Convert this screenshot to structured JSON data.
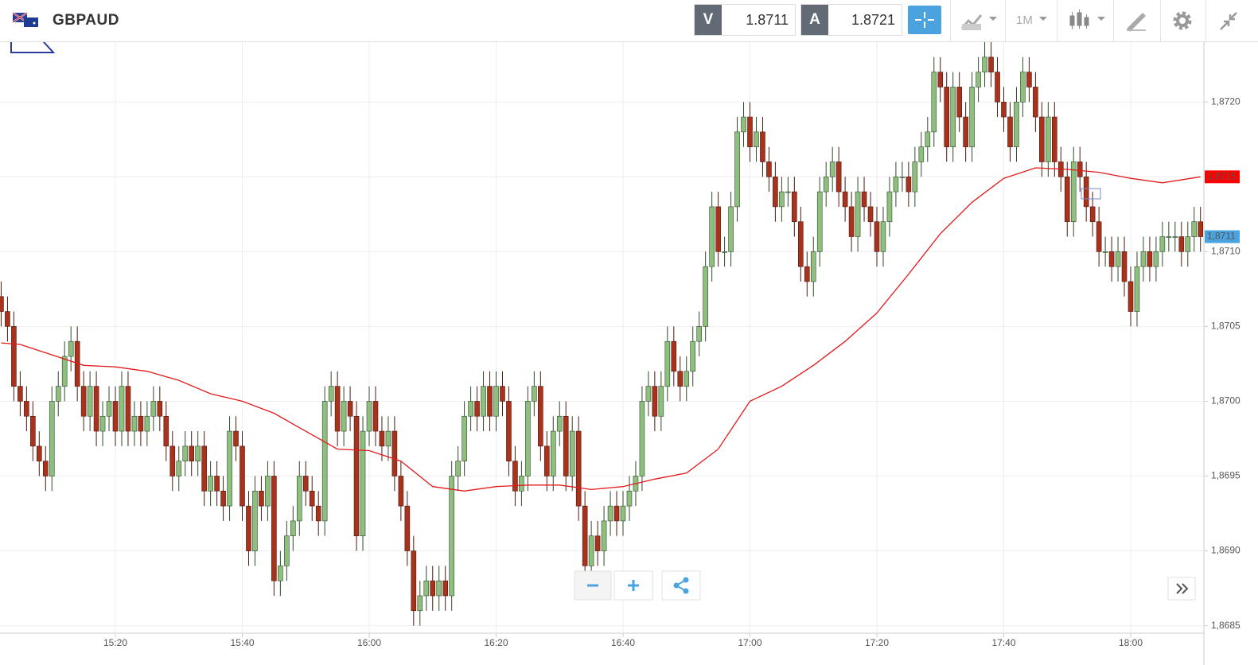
{
  "header": {
    "symbol": "GBPAUD",
    "bid_label": "V",
    "bid": "1.8711",
    "ask_label": "A",
    "ask": "1.8721",
    "timeframe": "1M"
  },
  "chart_data": {
    "type": "candlestick",
    "up_color": "#8fbf7f",
    "down_color": "#a8321c",
    "categories": [
      "15:02",
      "15:03",
      "15:04",
      "15:05",
      "15:06",
      "15:07",
      "15:08",
      "15:09",
      "15:10",
      "15:11",
      "15:12",
      "15:13",
      "15:14",
      "15:15",
      "15:16",
      "15:17",
      "15:18",
      "15:19",
      "15:20",
      "15:21",
      "15:22",
      "15:23",
      "15:24",
      "15:25",
      "15:26",
      "15:27",
      "15:28",
      "15:29",
      "15:30",
      "15:31",
      "15:32",
      "15:33",
      "15:34",
      "15:35",
      "15:36",
      "15:37",
      "15:38",
      "15:39",
      "15:40",
      "15:41",
      "15:42",
      "15:43",
      "15:44",
      "15:45",
      "15:46",
      "15:47",
      "15:48",
      "15:49",
      "15:50",
      "15:51",
      "15:52",
      "15:53",
      "15:54",
      "15:55",
      "15:56",
      "15:57",
      "15:58",
      "15:59",
      "16:00",
      "16:01",
      "16:02",
      "16:03",
      "16:04",
      "16:05",
      "16:06",
      "16:07",
      "16:08",
      "16:09",
      "16:10",
      "16:11",
      "16:12",
      "16:13",
      "16:14",
      "16:15",
      "16:16",
      "16:17",
      "16:18",
      "16:19",
      "16:20",
      "16:21",
      "16:22",
      "16:23",
      "16:24",
      "16:25",
      "16:26",
      "16:27",
      "16:28",
      "16:29",
      "16:30",
      "16:31",
      "16:32",
      "16:33",
      "16:34",
      "16:35",
      "16:36",
      "16:37",
      "16:38",
      "16:39",
      "16:40",
      "16:41",
      "16:42",
      "16:43",
      "16:44",
      "16:45",
      "16:46",
      "16:47",
      "16:48",
      "16:49",
      "16:50",
      "16:51",
      "16:52",
      "16:53",
      "16:54",
      "16:55",
      "16:56",
      "16:57",
      "16:58",
      "16:59",
      "17:00",
      "17:01",
      "17:02",
      "17:03",
      "17:04",
      "17:05",
      "17:06",
      "17:07",
      "17:08",
      "17:09",
      "17:10",
      "17:11",
      "17:12",
      "17:13",
      "17:14",
      "17:15",
      "17:16",
      "17:17",
      "17:18",
      "17:19",
      "17:20",
      "17:21",
      "17:22",
      "17:23",
      "17:24",
      "17:25",
      "17:26",
      "17:27",
      "17:28",
      "17:29",
      "17:30",
      "17:31",
      "17:32",
      "17:33",
      "17:34",
      "17:35",
      "17:36",
      "17:37",
      "17:38",
      "17:39",
      "17:40",
      "17:41",
      "17:42",
      "17:43",
      "17:44",
      "17:45",
      "17:46",
      "17:47",
      "17:48",
      "17:49",
      "17:50",
      "17:51",
      "17:52",
      "17:53",
      "17:54",
      "17:55",
      "17:56",
      "17:57",
      "17:58",
      "17:59",
      "18:00",
      "18:01",
      "18:02",
      "18:03",
      "18:04",
      "18:05",
      "18:06",
      "18:07",
      "18:08",
      "18:09",
      "18:10",
      "18:11"
    ],
    "open": [
      1.8707,
      1.8706,
      1.8705,
      1.8701,
      1.87,
      1.8699,
      1.8697,
      1.8696,
      1.8695,
      1.87,
      1.8701,
      1.8703,
      1.8704,
      1.8701,
      1.8699,
      1.8701,
      1.8698,
      1.8699,
      1.87,
      1.8698,
      1.8701,
      1.8698,
      1.8699,
      1.8698,
      1.8699,
      1.87,
      1.8699,
      1.8697,
      1.8695,
      1.8696,
      1.8697,
      1.8696,
      1.8697,
      1.8694,
      1.8695,
      1.8694,
      1.8693,
      1.8698,
      1.8697,
      1.8693,
      1.869,
      1.8694,
      1.8693,
      1.8695,
      1.8688,
      1.8689,
      1.8691,
      1.8692,
      1.8695,
      1.8694,
      1.8693,
      1.8692,
      1.87,
      1.8701,
      1.8698,
      1.87,
      1.8699,
      1.8691,
      1.8698,
      1.87,
      1.8698,
      1.8697,
      1.8698,
      1.8695,
      1.8693,
      1.869,
      1.8686,
      1.8687,
      1.8688,
      1.8687,
      1.8688,
      1.8687,
      1.8695,
      1.8696,
      1.8699,
      1.87,
      1.8699,
      1.8701,
      1.8699,
      1.8701,
      1.87,
      1.8696,
      1.8694,
      1.8695,
      1.87,
      1.8701,
      1.8697,
      1.8695,
      1.8698,
      1.8699,
      1.8695,
      1.8698,
      1.8693,
      1.8689,
      1.8691,
      1.869,
      1.8692,
      1.8693,
      1.8692,
      1.8693,
      1.8694,
      1.8695,
      1.87,
      1.8701,
      1.8699,
      1.8701,
      1.8704,
      1.8702,
      1.8701,
      1.8702,
      1.8704,
      1.8705,
      1.8709,
      1.8713,
      1.871,
      1.871,
      1.8713,
      1.8718,
      1.8719,
      1.8717,
      1.8718,
      1.8716,
      1.8715,
      1.8713,
      1.8714,
      1.8714,
      1.8712,
      1.8709,
      1.8708,
      1.871,
      1.8714,
      1.8715,
      1.8716,
      1.8714,
      1.8713,
      1.8711,
      1.8714,
      1.8713,
      1.8712,
      1.871,
      1.8712,
      1.8714,
      1.8715,
      1.8715,
      1.8714,
      1.8716,
      1.8717,
      1.8718,
      1.8722,
      1.8721,
      1.8717,
      1.8721,
      1.8719,
      1.8717,
      1.8721,
      1.8722,
      1.8723,
      1.8722,
      1.872,
      1.8719,
      1.8717,
      1.872,
      1.8722,
      1.8721,
      1.8719,
      1.8716,
      1.8719,
      1.8716,
      1.8715,
      1.8712,
      1.8716,
      1.8715,
      1.8713,
      1.8712,
      1.871,
      1.871,
      1.8709,
      1.871,
      1.8708,
      1.8706,
      1.8709,
      1.871,
      1.8709,
      1.871,
      1.8711,
      1.8711,
      1.8711,
      1.871,
      1.8711,
      1.8712
    ],
    "high": [
      1.8708,
      1.8707,
      1.8706,
      1.8702,
      1.8701,
      1.87,
      1.8698,
      1.8697,
      1.8701,
      1.8702,
      1.8704,
      1.8705,
      1.8705,
      1.8702,
      1.8702,
      1.8702,
      1.87,
      1.8701,
      1.8701,
      1.8702,
      1.8702,
      1.87,
      1.87,
      1.87,
      1.8701,
      1.8701,
      1.87,
      1.8698,
      1.8697,
      1.8698,
      1.8698,
      1.8698,
      1.8698,
      1.8696,
      1.8696,
      1.8695,
      1.8699,
      1.8699,
      1.8698,
      1.8694,
      1.8695,
      1.8695,
      1.8696,
      1.8696,
      1.869,
      1.8692,
      1.8693,
      1.8696,
      1.8696,
      1.8695,
      1.8694,
      1.8701,
      1.8702,
      1.8702,
      1.8701,
      1.8701,
      1.87,
      1.8699,
      1.8701,
      1.8701,
      1.8699,
      1.8699,
      1.8699,
      1.8696,
      1.8694,
      1.8691,
      1.8688,
      1.8689,
      1.8689,
      1.8689,
      1.8689,
      1.8696,
      1.8697,
      1.87,
      1.8701,
      1.8701,
      1.8702,
      1.8702,
      1.8702,
      1.8702,
      1.8701,
      1.8697,
      1.8696,
      1.8701,
      1.8702,
      1.8702,
      1.8698,
      1.8699,
      1.87,
      1.87,
      1.8699,
      1.8699,
      1.8694,
      1.8692,
      1.8692,
      1.8693,
      1.8694,
      1.8694,
      1.8694,
      1.8695,
      1.8696,
      1.8701,
      1.8702,
      1.8702,
      1.8702,
      1.8705,
      1.8705,
      1.8703,
      1.8703,
      1.8705,
      1.8706,
      1.871,
      1.8714,
      1.8714,
      1.8711,
      1.8714,
      1.8719,
      1.872,
      1.872,
      1.8719,
      1.8719,
      1.8717,
      1.8716,
      1.8715,
      1.8715,
      1.8715,
      1.8713,
      1.871,
      1.8711,
      1.8715,
      1.8716,
      1.8717,
      1.8717,
      1.8715,
      1.8714,
      1.8715,
      1.8715,
      1.8714,
      1.8713,
      1.8713,
      1.8715,
      1.8716,
      1.8716,
      1.8716,
      1.8717,
      1.8718,
      1.8719,
      1.8723,
      1.8723,
      1.8722,
      1.8722,
      1.8722,
      1.872,
      1.8722,
      1.8723,
      1.8724,
      1.8724,
      1.8723,
      1.8721,
      1.872,
      1.8721,
      1.8723,
      1.8723,
      1.8722,
      1.872,
      1.872,
      1.872,
      1.8717,
      1.8716,
      1.8717,
      1.8717,
      1.8716,
      1.8714,
      1.8713,
      1.8711,
      1.8711,
      1.8711,
      1.8711,
      1.8709,
      1.871,
      1.8711,
      1.8711,
      1.8711,
      1.8712,
      1.8712,
      1.8712,
      1.8712,
      1.8712,
      1.8713,
      1.8713
    ],
    "low": [
      1.8705,
      1.8704,
      1.87,
      1.8699,
      1.8698,
      1.8696,
      1.8695,
      1.8694,
      1.8694,
      1.8699,
      1.87,
      1.8702,
      1.87,
      1.8698,
      1.8698,
      1.8697,
      1.8697,
      1.8698,
      1.8697,
      1.8697,
      1.8697,
      1.8697,
      1.8697,
      1.8697,
      1.8698,
      1.8698,
      1.8696,
      1.8694,
      1.8694,
      1.8695,
      1.8695,
      1.8695,
      1.8693,
      1.8693,
      1.8693,
      1.8692,
      1.8692,
      1.8696,
      1.8692,
      1.8689,
      1.8689,
      1.8692,
      1.8692,
      1.8687,
      1.8687,
      1.8688,
      1.869,
      1.8691,
      1.8693,
      1.8692,
      1.8691,
      1.8691,
      1.8699,
      1.8697,
      1.8697,
      1.8698,
      1.869,
      1.869,
      1.8697,
      1.8697,
      1.8696,
      1.8696,
      1.8694,
      1.8692,
      1.8689,
      1.8685,
      1.8685,
      1.8686,
      1.8686,
      1.8686,
      1.8686,
      1.8686,
      1.8694,
      1.8695,
      1.8698,
      1.8698,
      1.8698,
      1.8698,
      1.8698,
      1.8699,
      1.8695,
      1.8693,
      1.8693,
      1.8694,
      1.8699,
      1.8696,
      1.8694,
      1.8694,
      1.8697,
      1.8694,
      1.8694,
      1.8692,
      1.8688,
      1.8688,
      1.8689,
      1.8689,
      1.8691,
      1.8691,
      1.8691,
      1.8692,
      1.8693,
      1.8694,
      1.8699,
      1.8698,
      1.8698,
      1.87,
      1.8701,
      1.87,
      1.87,
      1.8701,
      1.8703,
      1.8704,
      1.8708,
      1.8709,
      1.8709,
      1.8709,
      1.8712,
      1.8717,
      1.8716,
      1.8716,
      1.8715,
      1.8714,
      1.8712,
      1.8712,
      1.8713,
      1.8711,
      1.8708,
      1.8707,
      1.8707,
      1.8709,
      1.8713,
      1.8714,
      1.8713,
      1.8712,
      1.871,
      1.871,
      1.8712,
      1.8711,
      1.8709,
      1.8709,
      1.8711,
      1.8713,
      1.8714,
      1.8713,
      1.8713,
      1.8715,
      1.8716,
      1.8717,
      1.872,
      1.8716,
      1.8716,
      1.8718,
      1.8716,
      1.8716,
      1.872,
      1.8721,
      1.8721,
      1.8719,
      1.8718,
      1.8716,
      1.8716,
      1.8719,
      1.872,
      1.8718,
      1.8715,
      1.8715,
      1.8715,
      1.8714,
      1.8711,
      1.8711,
      1.8714,
      1.8712,
      1.8711,
      1.8709,
      1.8709,
      1.8708,
      1.8708,
      1.8707,
      1.8705,
      1.8705,
      1.8708,
      1.8708,
      1.8708,
      1.8709,
      1.871,
      1.871,
      1.8709,
      1.8709,
      1.871,
      1.871
    ],
    "close": [
      1.8706,
      1.8705,
      1.8701,
      1.87,
      1.8699,
      1.8697,
      1.8696,
      1.8695,
      1.87,
      1.8701,
      1.8703,
      1.8704,
      1.8701,
      1.8699,
      1.8701,
      1.8698,
      1.8699,
      1.87,
      1.8698,
      1.8701,
      1.8698,
      1.8699,
      1.8698,
      1.8699,
      1.87,
      1.8699,
      1.8697,
      1.8695,
      1.8696,
      1.8697,
      1.8696,
      1.8697,
      1.8694,
      1.8695,
      1.8694,
      1.8693,
      1.8698,
      1.8697,
      1.8693,
      1.869,
      1.8694,
      1.8693,
      1.8695,
      1.8688,
      1.8689,
      1.8691,
      1.8692,
      1.8695,
      1.8694,
      1.8693,
      1.8692,
      1.87,
      1.8701,
      1.8698,
      1.87,
      1.8699,
      1.8691,
      1.8698,
      1.87,
      1.8698,
      1.8697,
      1.8698,
      1.8695,
      1.8693,
      1.869,
      1.8686,
      1.8687,
      1.8688,
      1.8687,
      1.8688,
      1.8687,
      1.8695,
      1.8696,
      1.8699,
      1.87,
      1.8699,
      1.8701,
      1.8699,
      1.8701,
      1.87,
      1.8696,
      1.8694,
      1.8695,
      1.87,
      1.8701,
      1.8697,
      1.8695,
      1.8698,
      1.8699,
      1.8695,
      1.8698,
      1.8693,
      1.8689,
      1.8691,
      1.869,
      1.8692,
      1.8693,
      1.8692,
      1.8693,
      1.8694,
      1.8695,
      1.87,
      1.8701,
      1.8699,
      1.8701,
      1.8704,
      1.8702,
      1.8701,
      1.8702,
      1.8704,
      1.8705,
      1.8709,
      1.8713,
      1.871,
      1.871,
      1.8713,
      1.8718,
      1.8719,
      1.8717,
      1.8718,
      1.8716,
      1.8715,
      1.8713,
      1.8714,
      1.8714,
      1.8712,
      1.8709,
      1.8708,
      1.871,
      1.8714,
      1.8715,
      1.8716,
      1.8714,
      1.8713,
      1.8711,
      1.8714,
      1.8713,
      1.8712,
      1.871,
      1.8712,
      1.8714,
      1.8715,
      1.8715,
      1.8714,
      1.8716,
      1.8717,
      1.8718,
      1.8722,
      1.8721,
      1.8717,
      1.8721,
      1.8719,
      1.8717,
      1.8721,
      1.8722,
      1.8723,
      1.8722,
      1.872,
      1.8719,
      1.8717,
      1.872,
      1.8722,
      1.8721,
      1.8719,
      1.8716,
      1.8719,
      1.8716,
      1.8715,
      1.8712,
      1.8716,
      1.8715,
      1.8713,
      1.8712,
      1.871,
      1.871,
      1.8709,
      1.871,
      1.8708,
      1.8706,
      1.8709,
      1.871,
      1.8709,
      1.871,
      1.8711,
      1.8711,
      1.8711,
      1.871,
      1.8711,
      1.8712,
      1.8711
    ],
    "moving_average": {
      "color": "#e31a1c",
      "x": [
        "15:02",
        "15:05",
        "15:10",
        "15:15",
        "15:20",
        "15:25",
        "15:30",
        "15:35",
        "15:40",
        "15:45",
        "15:50",
        "15:55",
        "16:00",
        "16:05",
        "16:10",
        "16:15",
        "16:20",
        "16:25",
        "16:30",
        "16:35",
        "16:40",
        "16:45",
        "16:50",
        "16:55",
        "17:00",
        "17:05",
        "17:10",
        "17:15",
        "17:20",
        "17:25",
        "17:30",
        "17:35",
        "17:40",
        "17:45",
        "17:50",
        "17:55",
        "18:00",
        "18:05",
        "18:11"
      ],
      "values": [
        1.87039,
        1.87038,
        1.87031,
        1.87024,
        1.87023,
        1.8702,
        1.87014,
        1.87005,
        1.87,
        1.86992,
        1.8698,
        1.86968,
        1.86967,
        1.8696,
        1.86943,
        1.8694,
        1.86943,
        1.86944,
        1.86944,
        1.86941,
        1.86943,
        1.86948,
        1.86952,
        1.86968,
        1.87,
        1.8701,
        1.87024,
        1.8704,
        1.87059,
        1.87085,
        1.87112,
        1.87133,
        1.87149,
        1.87156,
        1.87155,
        1.87153,
        1.87149,
        1.87146,
        1.8715
      ]
    },
    "price_tags": [
      {
        "value": 1.8715,
        "label": "1,8715",
        "color": "#ff0000"
      },
      {
        "value": 1.8711,
        "label": "1,8711",
        "color": "#4aa3df"
      }
    ],
    "ylim": [
      1.86845,
      1.8724
    ],
    "yticks": [
      {
        "value": 1.8685,
        "label": "1,8685"
      },
      {
        "value": 1.869,
        "label": "1,8690"
      },
      {
        "value": 1.8695,
        "label": "1,8695"
      },
      {
        "value": 1.87,
        "label": "1,8700"
      },
      {
        "value": 1.8705,
        "label": "1,8705"
      },
      {
        "value": 1.871,
        "label": "1,8710"
      },
      {
        "value": 1.8715,
        "label": "1,8715"
      },
      {
        "value": 1.872,
        "label": "1,8720"
      }
    ],
    "xticks": [
      "15:20",
      "15:40",
      "16:00",
      "16:20",
      "16:40",
      "17:00",
      "17:20",
      "17:40",
      "18:00"
    ],
    "grid": true
  }
}
